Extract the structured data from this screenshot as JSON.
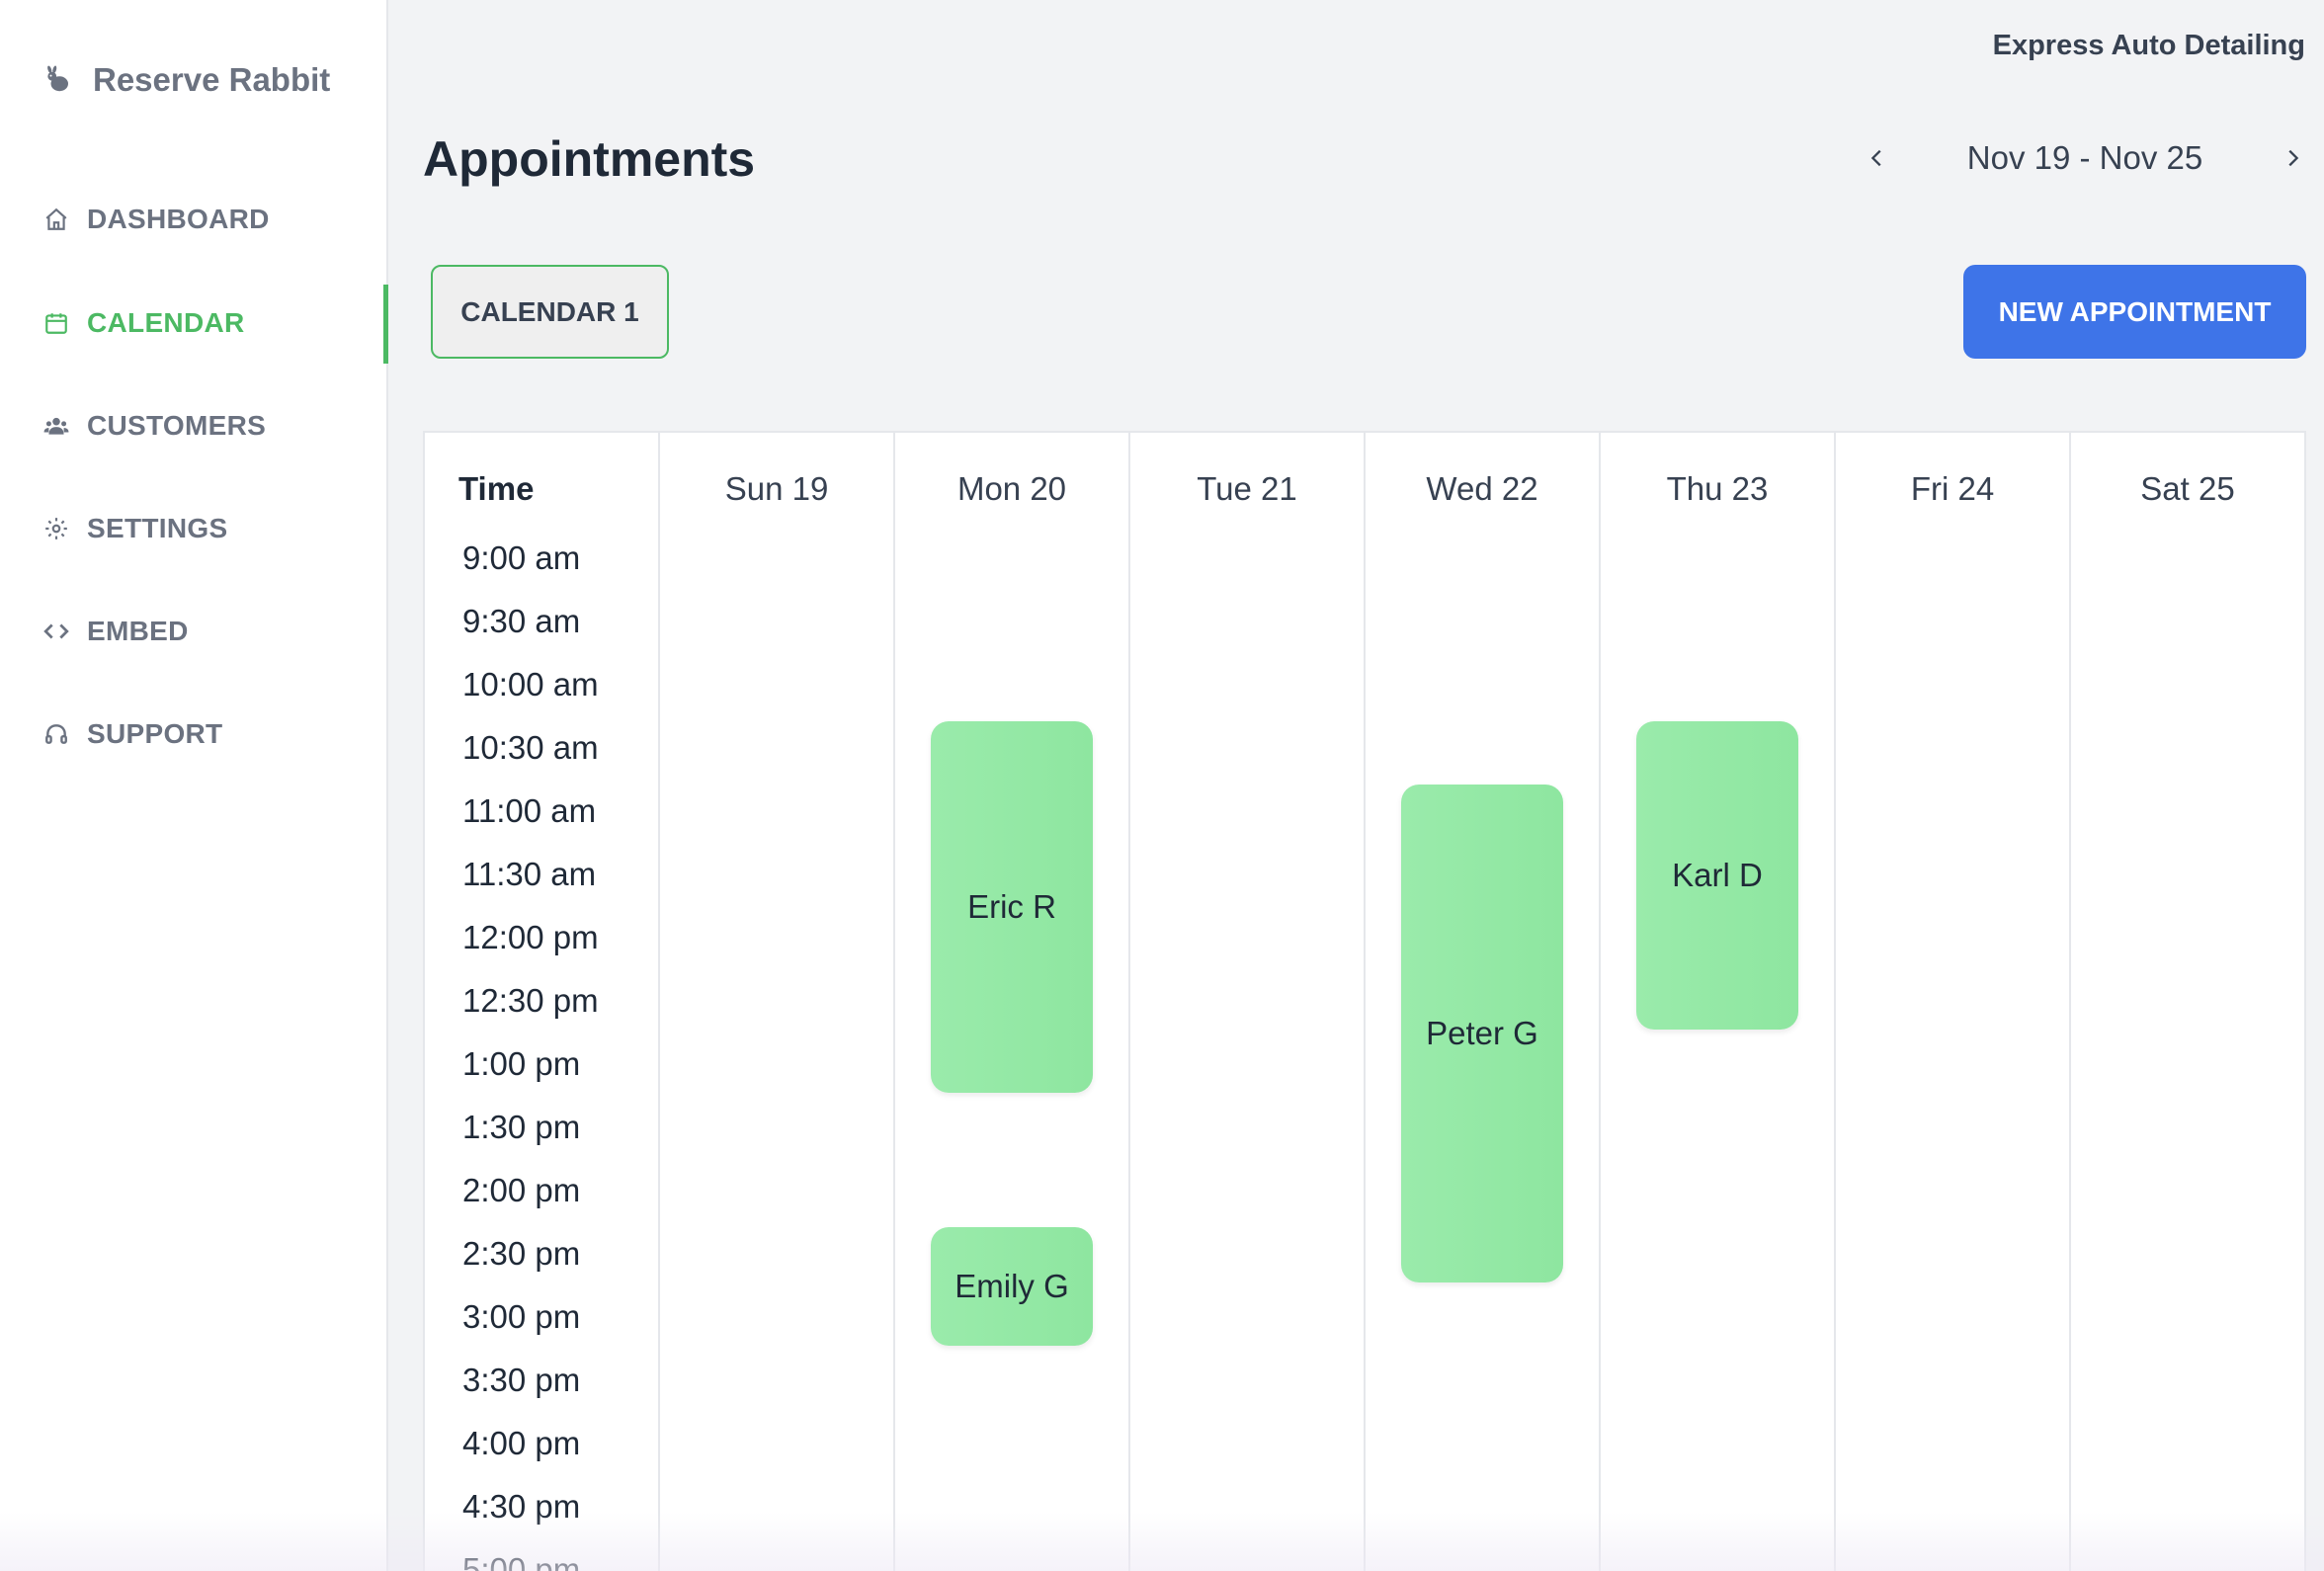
{
  "sidebar": {
    "brand": "Reserve Rabbit",
    "items": [
      {
        "label": "DASHBOARD",
        "icon": "home-icon"
      },
      {
        "label": "CALENDAR",
        "icon": "calendar-icon"
      },
      {
        "label": "CUSTOMERS",
        "icon": "users-icon"
      },
      {
        "label": "SETTINGS",
        "icon": "gear-icon"
      },
      {
        "label": "EMBED",
        "icon": "code-icon"
      },
      {
        "label": "SUPPORT",
        "icon": "headset-icon"
      }
    ],
    "active_item": "CALENDAR"
  },
  "header": {
    "business_name": "Express Auto Detailing",
    "page_title": "Appointments",
    "date_range": "Nov 19 - Nov 25"
  },
  "toolbar": {
    "calendar_tab": "CALENDAR 1",
    "new_appointment": "NEW APPOINTMENT"
  },
  "calendar": {
    "time_header": "Time",
    "days": [
      "Sun 19",
      "Mon 20",
      "Tue 21",
      "Wed 22",
      "Thu 23",
      "Fri 24",
      "Sat 25"
    ],
    "times": [
      "9:00 am",
      "9:30 am",
      "10:00 am",
      "10:30 am",
      "11:00 am",
      "11:30 am",
      "12:00 pm",
      "12:30 pm",
      "1:00 pm",
      "1:30 pm",
      "2:00 pm",
      "2:30 pm",
      "3:00 pm",
      "3:30 pm",
      "4:00 pm",
      "4:30 pm",
      "5:00 pm"
    ],
    "appointments": [
      {
        "name": "Eric R",
        "day": "Mon 20"
      },
      {
        "name": "Emily G",
        "day": "Mon 20"
      },
      {
        "name": "Peter G",
        "day": "Wed 22"
      },
      {
        "name": "Karl D",
        "day": "Thu 23"
      }
    ]
  },
  "colors": {
    "accent_green": "#4cb963",
    "primary_blue": "#3e74e8",
    "appointment_green": "#9aebab"
  }
}
